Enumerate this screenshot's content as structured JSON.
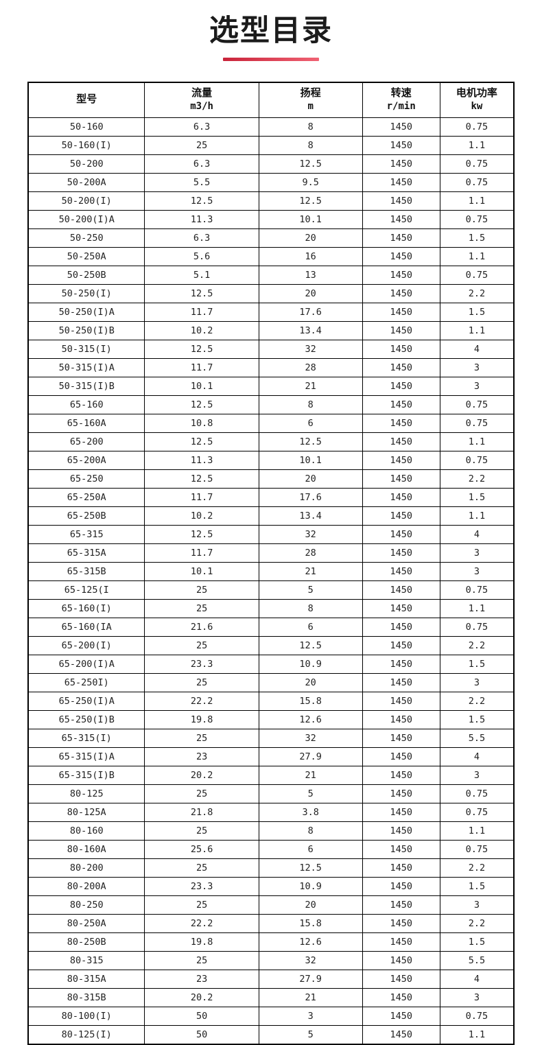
{
  "page": {
    "title": "选型目录",
    "accent": {
      "underline_left": "#c9243a",
      "underline_right": "#f06273"
    }
  },
  "table": {
    "headers": [
      {
        "line1": "型号",
        "line2": ""
      },
      {
        "line1": "流量",
        "line2": "m3/h"
      },
      {
        "line1": "扬程",
        "line2": "m"
      },
      {
        "line1": "转速",
        "line2": "r/min"
      },
      {
        "line1": "电机功率",
        "line2": "kw"
      }
    ],
    "rows": [
      {
        "model": "50-160",
        "flow": "6.3",
        "head": "8",
        "speed": "1450",
        "power": "0.75"
      },
      {
        "model": "50-160(I)",
        "flow": "25",
        "head": "8",
        "speed": "1450",
        "power": "1.1"
      },
      {
        "model": "50-200",
        "flow": "6.3",
        "head": "12.5",
        "speed": "1450",
        "power": "0.75"
      },
      {
        "model": "50-200A",
        "flow": "5.5",
        "head": "9.5",
        "speed": "1450",
        "power": "0.75"
      },
      {
        "model": "50-200(I)",
        "flow": "12.5",
        "head": "12.5",
        "speed": "1450",
        "power": "1.1"
      },
      {
        "model": "50-200(I)A",
        "flow": "11.3",
        "head": "10.1",
        "speed": "1450",
        "power": "0.75"
      },
      {
        "model": "50-250",
        "flow": "6.3",
        "head": "20",
        "speed": "1450",
        "power": "1.5"
      },
      {
        "model": "50-250A",
        "flow": "5.6",
        "head": "16",
        "speed": "1450",
        "power": "1.1"
      },
      {
        "model": "50-250B",
        "flow": "5.1",
        "head": "13",
        "speed": "1450",
        "power": "0.75"
      },
      {
        "model": "50-250(I)",
        "flow": "12.5",
        "head": "20",
        "speed": "1450",
        "power": "2.2"
      },
      {
        "model": "50-250(I)A",
        "flow": "11.7",
        "head": "17.6",
        "speed": "1450",
        "power": "1.5"
      },
      {
        "model": "50-250(I)B",
        "flow": "10.2",
        "head": "13.4",
        "speed": "1450",
        "power": "1.1"
      },
      {
        "model": "50-315(I)",
        "flow": "12.5",
        "head": "32",
        "speed": "1450",
        "power": "4"
      },
      {
        "model": "50-315(I)A",
        "flow": "11.7",
        "head": "28",
        "speed": "1450",
        "power": "3"
      },
      {
        "model": "50-315(I)B",
        "flow": "10.1",
        "head": "21",
        "speed": "1450",
        "power": "3"
      },
      {
        "model": "65-160",
        "flow": "12.5",
        "head": "8",
        "speed": "1450",
        "power": "0.75"
      },
      {
        "model": "65-160A",
        "flow": "10.8",
        "head": "6",
        "speed": "1450",
        "power": "0.75"
      },
      {
        "model": "65-200",
        "flow": "12.5",
        "head": "12.5",
        "speed": "1450",
        "power": "1.1"
      },
      {
        "model": "65-200A",
        "flow": "11.3",
        "head": "10.1",
        "speed": "1450",
        "power": "0.75"
      },
      {
        "model": "65-250",
        "flow": "12.5",
        "head": "20",
        "speed": "1450",
        "power": "2.2"
      },
      {
        "model": "65-250A",
        "flow": "11.7",
        "head": "17.6",
        "speed": "1450",
        "power": "1.5"
      },
      {
        "model": "65-250B",
        "flow": "10.2",
        "head": "13.4",
        "speed": "1450",
        "power": "1.1"
      },
      {
        "model": "65-315",
        "flow": "12.5",
        "head": "32",
        "speed": "1450",
        "power": "4"
      },
      {
        "model": "65-315A",
        "flow": "11.7",
        "head": "28",
        "speed": "1450",
        "power": "3"
      },
      {
        "model": "65-315B",
        "flow": "10.1",
        "head": "21",
        "speed": "1450",
        "power": "3"
      },
      {
        "model": "65-125(I",
        "flow": "25",
        "head": "5",
        "speed": "1450",
        "power": "0.75"
      },
      {
        "model": "65-160(I)",
        "flow": "25",
        "head": "8",
        "speed": "1450",
        "power": "1.1"
      },
      {
        "model": "65-160(IA",
        "flow": "21.6",
        "head": "6",
        "speed": "1450",
        "power": "0.75"
      },
      {
        "model": "65-200(I)",
        "flow": "25",
        "head": "12.5",
        "speed": "1450",
        "power": "2.2"
      },
      {
        "model": "65-200(I)A",
        "flow": "23.3",
        "head": "10.9",
        "speed": "1450",
        "power": "1.5"
      },
      {
        "model": "65-250I)",
        "flow": "25",
        "head": "20",
        "speed": "1450",
        "power": "3"
      },
      {
        "model": "65-250(I)A",
        "flow": "22.2",
        "head": "15.8",
        "speed": "1450",
        "power": "2.2"
      },
      {
        "model": "65-250(I)B",
        "flow": "19.8",
        "head": "12.6",
        "speed": "1450",
        "power": "1.5"
      },
      {
        "model": "65-315(I)",
        "flow": "25",
        "head": "32",
        "speed": "1450",
        "power": "5.5"
      },
      {
        "model": "65-315(I)A",
        "flow": "23",
        "head": "27.9",
        "speed": "1450",
        "power": "4"
      },
      {
        "model": "65-315(I)B",
        "flow": "20.2",
        "head": "21",
        "speed": "1450",
        "power": "3"
      },
      {
        "model": "80-125",
        "flow": "25",
        "head": "5",
        "speed": "1450",
        "power": "0.75"
      },
      {
        "model": "80-125A",
        "flow": "21.8",
        "head": "3.8",
        "speed": "1450",
        "power": "0.75"
      },
      {
        "model": "80-160",
        "flow": "25",
        "head": "8",
        "speed": "1450",
        "power": "1.1"
      },
      {
        "model": "80-160A",
        "flow": "25.6",
        "head": "6",
        "speed": "1450",
        "power": "0.75"
      },
      {
        "model": "80-200",
        "flow": "25",
        "head": "12.5",
        "speed": "1450",
        "power": "2.2"
      },
      {
        "model": "80-200A",
        "flow": "23.3",
        "head": "10.9",
        "speed": "1450",
        "power": "1.5"
      },
      {
        "model": "80-250",
        "flow": "25",
        "head": "20",
        "speed": "1450",
        "power": "3"
      },
      {
        "model": "80-250A",
        "flow": "22.2",
        "head": "15.8",
        "speed": "1450",
        "power": "2.2"
      },
      {
        "model": "80-250B",
        "flow": "19.8",
        "head": "12.6",
        "speed": "1450",
        "power": "1.5"
      },
      {
        "model": "80-315",
        "flow": "25",
        "head": "32",
        "speed": "1450",
        "power": "5.5"
      },
      {
        "model": "80-315A",
        "flow": "23",
        "head": "27.9",
        "speed": "1450",
        "power": "4"
      },
      {
        "model": "80-315B",
        "flow": "20.2",
        "head": "21",
        "speed": "1450",
        "power": "3"
      },
      {
        "model": "80-100(I)",
        "flow": "50",
        "head": "3",
        "speed": "1450",
        "power": "0.75"
      },
      {
        "model": "80-125(I)",
        "flow": "50",
        "head": "5",
        "speed": "1450",
        "power": "1.1"
      }
    ]
  }
}
